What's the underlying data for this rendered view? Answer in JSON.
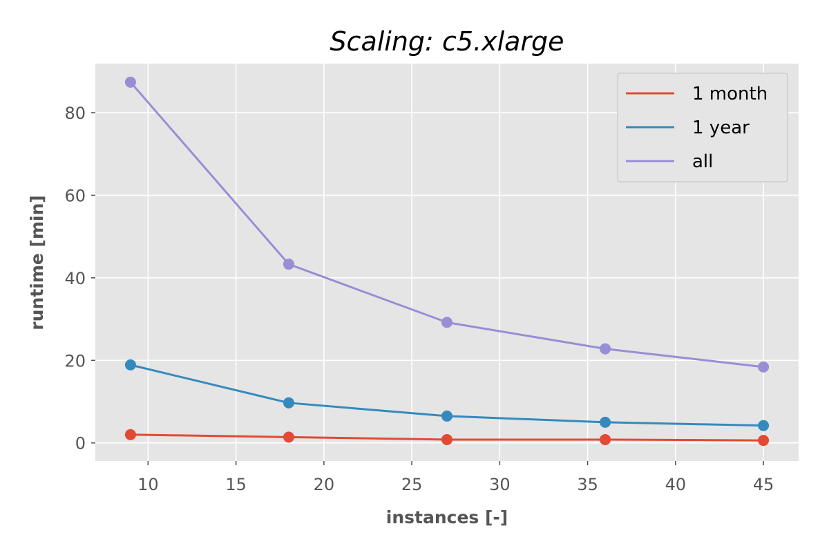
{
  "chart_data": {
    "type": "line",
    "title": "Scaling: c5.xlarge",
    "xlabel": "instances [-]",
    "ylabel": "runtime [min]",
    "x": [
      9,
      18,
      27,
      36,
      45
    ],
    "xlim": [
      7,
      47
    ],
    "ylim": [
      -4.4,
      91.9
    ],
    "xticks": [
      10,
      15,
      20,
      25,
      30,
      35,
      40,
      45
    ],
    "yticks": [
      0,
      20,
      40,
      60,
      80
    ],
    "grid": true,
    "legend_position": "top-right",
    "series": [
      {
        "name": "1 month",
        "color": "#E24A33",
        "values": [
          2.0,
          1.4,
          0.8,
          0.8,
          0.6
        ]
      },
      {
        "name": "1 year",
        "color": "#348ABD",
        "values": [
          18.9,
          9.7,
          6.5,
          5.0,
          4.2
        ]
      },
      {
        "name": "all",
        "color": "#988ED5",
        "values": [
          87.4,
          43.3,
          29.2,
          22.8,
          18.4
        ]
      }
    ]
  }
}
